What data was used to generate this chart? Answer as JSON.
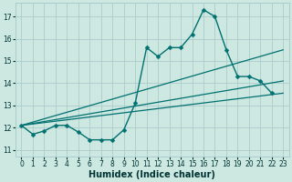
{
  "xlabel": "Humidex (Indice chaleur)",
  "xlim": [
    -0.5,
    23.5
  ],
  "ylim": [
    10.7,
    17.6
  ],
  "yticks": [
    11,
    12,
    13,
    14,
    15,
    16,
    17
  ],
  "xticks": [
    0,
    1,
    2,
    3,
    4,
    5,
    6,
    7,
    8,
    9,
    10,
    11,
    12,
    13,
    14,
    15,
    16,
    17,
    18,
    19,
    20,
    21,
    22,
    23
  ],
  "bg_color": "#cce8e0",
  "grid_color": "#aacccc",
  "line_color": "#007070",
  "series_main": {
    "x": [
      0,
      1,
      2,
      3,
      4,
      5,
      6,
      7,
      8,
      9,
      10,
      11,
      12,
      13,
      14,
      15,
      16,
      17,
      18,
      19,
      20,
      21,
      22
    ],
    "y": [
      12.1,
      11.7,
      11.85,
      12.1,
      12.1,
      11.8,
      11.45,
      11.45,
      11.45,
      11.9,
      13.1,
      15.6,
      15.2,
      15.6,
      15.6,
      16.2,
      17.3,
      17.0,
      15.5,
      14.3,
      14.3,
      14.1,
      13.55
    ],
    "linewidth": 1.0,
    "markersize": 2.5
  },
  "trend_lines": [
    {
      "x": [
        0,
        23
      ],
      "y": [
        12.1,
        13.55
      ]
    },
    {
      "x": [
        0,
        23
      ],
      "y": [
        12.1,
        14.1
      ]
    },
    {
      "x": [
        0,
        23
      ],
      "y": [
        12.1,
        15.5
      ]
    }
  ],
  "font_color": "#003333",
  "tick_fontsize": 5.5,
  "label_fontsize": 7.0
}
